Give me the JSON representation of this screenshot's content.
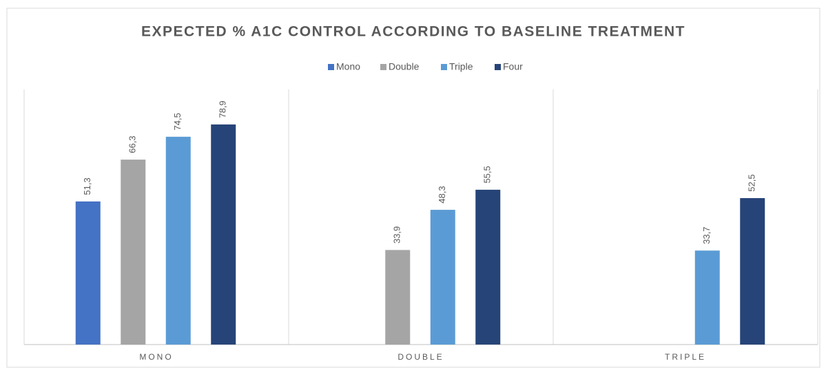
{
  "chart_data": {
    "type": "bar",
    "title": "EXPECTED % A1C CONTROL ACCORDING TO BASELINE TREATMENT",
    "categories": [
      "MONO",
      "DOUBLE",
      "TRIPLE"
    ],
    "series": [
      {
        "name": "Mono",
        "color": "#4472c4",
        "values": [
          51.3,
          null,
          null
        ],
        "value_labels": [
          "51,3",
          null,
          null
        ]
      },
      {
        "name": "Double",
        "color": "#a5a5a5",
        "values": [
          66.3,
          33.9,
          null
        ],
        "value_labels": [
          "66,3",
          "33,9",
          null
        ]
      },
      {
        "name": "Triple",
        "color": "#5b9bd5",
        "values": [
          74.5,
          48.3,
          33.7
        ],
        "value_labels": [
          "74,5",
          "48,3",
          "33,7"
        ]
      },
      {
        "name": "Four",
        "color": "#264478",
        "values": [
          78.9,
          55.5,
          52.5
        ],
        "value_labels": [
          "78,9",
          "55,5",
          "52,5"
        ]
      }
    ]
  }
}
